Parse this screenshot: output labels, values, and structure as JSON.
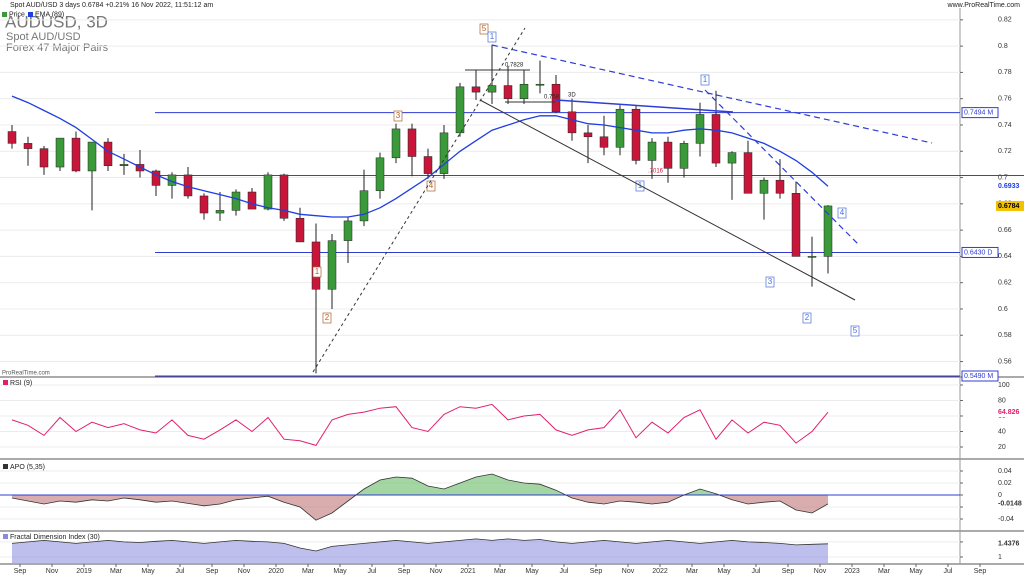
{
  "header": {
    "info": "Spot AUD/USD 3 days 0.6784 +0.21% 16 Nov 2022, 11:51:12 am",
    "site": "www.ProRealTime.com",
    "symbol": "AUDUSD, 3D",
    "name": "Spot AUD/USD",
    "group": "Forex 47 Major Pairs",
    "watermark": "ProRealTime.com"
  },
  "chart_data": [
    {
      "type": "candlestick",
      "categories": [
        null,
        "Sep",
        null,
        "Nov",
        null,
        "2019",
        null,
        "Mar",
        null,
        "May",
        null,
        "Jul",
        null,
        "Sep",
        null,
        "Nov",
        null,
        "2020",
        null,
        "Mar",
        null,
        "May",
        null,
        "Jul",
        null,
        "Sep",
        null,
        "Nov",
        null,
        "2021",
        null,
        "Mar",
        null,
        "May",
        null,
        "Jul",
        null,
        "Sep",
        null,
        "Nov",
        null,
        "2022",
        null,
        "Mar",
        null,
        "May",
        null,
        "Jul",
        null,
        "Sep",
        null,
        "Nov",
        null,
        "2023",
        null,
        "Mar",
        null,
        "May",
        null,
        "Jul",
        null,
        "Sep",
        null
      ],
      "series": [
        {
          "name": "Price",
          "up_color": "#3a9a3a",
          "down_color": "#c8163a",
          "open": [
            0.735,
            0.726,
            0.722,
            0.708,
            0.73,
            0.705,
            0.727,
            0.709,
            0.71,
            0.705,
            0.694,
            0.702,
            0.686,
            0.673,
            0.675,
            0.689,
            0.676,
            0.702,
            0.669,
            0.651,
            0.615,
            0.652,
            0.667,
            0.69,
            0.715,
            0.737,
            0.716,
            0.703,
            0.734,
            0.769,
            0.765,
            0.77,
            0.76,
            0.771,
            0.771,
            0.75,
            0.734,
            0.731,
            0.723,
            0.752,
            0.713,
            0.727,
            0.707,
            0.726,
            0.748,
            0.711,
            0.719,
            0.688,
            0.698,
            0.688,
            0.64,
            0.64,
            null,
            null,
            null,
            null,
            null,
            null,
            null,
            null,
            null,
            null,
            null
          ],
          "high": [
            0.74,
            0.731,
            0.724,
            0.73,
            0.735,
            0.727,
            0.73,
            0.718,
            0.721,
            0.706,
            0.704,
            0.708,
            0.688,
            0.689,
            0.691,
            0.692,
            0.704,
            0.703,
            0.677,
            0.665,
            0.657,
            0.67,
            0.706,
            0.719,
            0.741,
            0.741,
            0.722,
            0.74,
            0.772,
            0.782,
            0.801,
            0.785,
            0.782,
            0.789,
            0.778,
            0.76,
            0.74,
            0.747,
            0.755,
            0.755,
            0.73,
            0.731,
            0.728,
            0.757,
            0.766,
            0.72,
            0.728,
            0.7,
            0.714,
            0.697,
            0.655,
            0.679,
            null,
            null,
            null,
            null,
            null,
            null,
            null,
            null,
            null,
            null,
            null
          ],
          "low": [
            0.722,
            0.709,
            0.702,
            0.705,
            0.704,
            0.675,
            0.705,
            0.702,
            0.7,
            0.686,
            0.684,
            0.684,
            0.668,
            0.667,
            0.671,
            0.676,
            0.675,
            0.667,
            0.651,
            0.551,
            0.6,
            0.635,
            0.663,
            0.684,
            0.711,
            0.701,
            0.699,
            0.699,
            0.731,
            0.759,
            0.756,
            0.756,
            0.756,
            0.764,
            0.749,
            0.728,
            0.711,
            0.717,
            0.717,
            0.71,
            0.699,
            0.696,
            0.7,
            0.716,
            0.708,
            0.683,
            0.688,
            0.668,
            0.684,
            0.64,
            0.617,
            0.627,
            null,
            null,
            null,
            null,
            null,
            null,
            null,
            null,
            null,
            null,
            null
          ],
          "close": [
            0.726,
            0.722,
            0.708,
            0.73,
            0.705,
            0.727,
            0.709,
            0.71,
            0.705,
            0.694,
            0.702,
            0.686,
            0.673,
            0.675,
            0.689,
            0.676,
            0.702,
            0.669,
            0.651,
            0.615,
            0.652,
            0.667,
            0.69,
            0.715,
            0.737,
            0.716,
            0.703,
            0.734,
            0.769,
            0.765,
            0.77,
            0.76,
            0.771,
            0.771,
            0.75,
            0.734,
            0.731,
            0.723,
            0.752,
            0.713,
            0.727,
            0.707,
            0.726,
            0.748,
            0.711,
            0.719,
            0.688,
            0.698,
            0.688,
            0.64,
            0.64,
            0.6784,
            null,
            null,
            null,
            null,
            null,
            null,
            null,
            null,
            null,
            null,
            null
          ]
        },
        {
          "name": "EMA (89)",
          "type": "line",
          "color": "#1f3fe0",
          "values": [
            0.762,
            0.757,
            0.751,
            0.745,
            0.738,
            0.729,
            0.72,
            0.714,
            0.708,
            0.702,
            0.697,
            0.693,
            0.69,
            0.687,
            0.684,
            0.68,
            0.677,
            0.675,
            0.672,
            0.671,
            0.67,
            0.67,
            0.672,
            0.677,
            0.684,
            0.692,
            0.7,
            0.71,
            0.72,
            0.728,
            0.736,
            0.74,
            0.744,
            0.747,
            0.747,
            0.744,
            0.741,
            0.74,
            0.738,
            0.736,
            0.734,
            0.734,
            0.736,
            0.737,
            0.736,
            0.734,
            0.73,
            0.726,
            0.72,
            0.713,
            0.704,
            0.6933,
            null,
            null,
            null,
            null,
            null,
            null,
            null,
            null,
            null,
            null,
            null
          ]
        }
      ],
      "ylim": [
        0.549,
        0.829
      ],
      "yticks": [
        0.56,
        0.58,
        0.6,
        0.62,
        0.64,
        0.66,
        0.68,
        0.7,
        0.72,
        0.74,
        0.76,
        0.78,
        0.8,
        0.82
      ],
      "levels": [
        {
          "value": 0.7494,
          "label": "0.7494 M",
          "color": "#2f3cd6"
        },
        {
          "value": 0.643,
          "label": "0.6430 D",
          "color": "#2f3cd6"
        },
        {
          "value": 0.549,
          "label": "0.5490 M",
          "color": "#2f3cd6"
        },
        {
          "value": 0.7016,
          "color": "#c8163a"
        }
      ],
      "annotations": [
        {
          "text": "5",
          "color": "#b0602a"
        },
        {
          "text": "1",
          "color": "#4a6fd8"
        },
        {
          "text": "0.7828",
          "color": "#222222"
        },
        {
          "text": "0.758",
          "color": "#222222"
        },
        {
          "text": "3D",
          "color": "#222222"
        },
        {
          "text": "3",
          "color": "#b0602a"
        },
        {
          "text": "4",
          "color": "#b0602a"
        },
        {
          "text": "1",
          "color": "#b0602a"
        },
        {
          "text": "2",
          "color": "#b0602a"
        },
        {
          "text": "1",
          "color": "#4a6fd8"
        },
        {
          "text": "1",
          "color": "#4a6fd8"
        },
        {
          "text": ".7016",
          "color": "#c8163a"
        },
        {
          "text": "3",
          "color": "#4a6fd8"
        },
        {
          "text": "4",
          "color": "#4a6fd8"
        },
        {
          "text": "2",
          "color": "#4a6fd8"
        },
        {
          "text": "5",
          "color": "#4a6fd8"
        }
      ]
    },
    {
      "type": "line",
      "title": "RSI (9)",
      "color": "#e0206e",
      "values": [
        55,
        48,
        35,
        58,
        40,
        52,
        45,
        50,
        42,
        38,
        55,
        35,
        30,
        42,
        55,
        40,
        58,
        30,
        28,
        22,
        55,
        62,
        65,
        70,
        72,
        45,
        40,
        62,
        72,
        70,
        75,
        55,
        60,
        62,
        42,
        35,
        42,
        45,
        68,
        32,
        52,
        38,
        58,
        68,
        30,
        55,
        38,
        52,
        48,
        25,
        40,
        64.826,
        null,
        null,
        null,
        null,
        null,
        null,
        null,
        null,
        null,
        null,
        null
      ],
      "ylim": [
        5.8,
        109
      ],
      "yticks": [
        20,
        40,
        60,
        80,
        100
      ]
    },
    {
      "type": "area",
      "title": "APO (5,35)",
      "color": "#7cc47c",
      "negative_color": "#c98a8a",
      "values": [
        -0.005,
        -0.01,
        -0.015,
        -0.01,
        -0.012,
        -0.008,
        -0.01,
        -0.005,
        -0.008,
        -0.012,
        -0.01,
        -0.014,
        -0.018,
        -0.015,
        -0.008,
        -0.005,
        -0.002,
        -0.012,
        -0.02,
        -0.042,
        -0.03,
        -0.01,
        0.01,
        0.025,
        0.03,
        0.028,
        0.015,
        0.01,
        0.02,
        0.03,
        0.035,
        0.025,
        0.02,
        0.018,
        0.008,
        -0.005,
        -0.012,
        -0.015,
        -0.01,
        -0.012,
        -0.015,
        -0.012,
        0,
        0.01,
        0.002,
        -0.008,
        -0.015,
        -0.012,
        -0.01,
        -0.025,
        -0.03,
        -0.0148,
        null,
        null,
        null,
        null,
        null,
        null,
        null,
        null,
        null,
        null,
        null
      ],
      "ylim": [
        -0.0583,
        0.055
      ],
      "yticks": [
        -0.04,
        -0.02,
        0,
        0.02,
        0.04
      ]
    },
    {
      "type": "area",
      "title": "Fractal Dimension Index (30)",
      "color": "#8a8ae0",
      "values": [
        1.45,
        1.5,
        1.55,
        1.5,
        1.45,
        1.5,
        1.55,
        1.5,
        1.48,
        1.52,
        1.55,
        1.5,
        1.45,
        1.5,
        1.55,
        1.52,
        1.5,
        1.45,
        1.3,
        1.2,
        1.35,
        1.4,
        1.45,
        1.5,
        1.55,
        1.5,
        1.45,
        1.5,
        1.55,
        1.6,
        1.55,
        1.6,
        1.55,
        1.58,
        1.5,
        1.45,
        1.5,
        1.55,
        1.5,
        1.45,
        1.5,
        1.55,
        1.5,
        1.45,
        1.5,
        1.55,
        1.5,
        1.48,
        1.45,
        1.4,
        1.42,
        1.4376,
        null,
        null,
        null,
        null,
        null,
        null,
        null,
        null,
        null,
        null,
        null
      ],
      "ylim": [
        0.8,
        1.83
      ],
      "yticks": [
        1,
        1.5
      ]
    }
  ]
}
